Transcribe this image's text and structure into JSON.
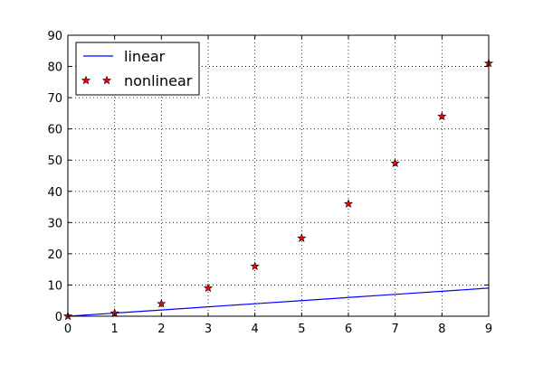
{
  "chart_data": {
    "type": "line",
    "title": "",
    "xlabel": "",
    "ylabel": "",
    "xlim": [
      0,
      9
    ],
    "ylim": [
      0,
      90
    ],
    "x_ticks": [
      0,
      1,
      2,
      3,
      4,
      5,
      6,
      7,
      8,
      9
    ],
    "y_ticks": [
      0,
      10,
      20,
      30,
      40,
      50,
      60,
      70,
      80,
      90
    ],
    "grid": true,
    "legend_position": "top-left",
    "series": [
      {
        "name": "linear",
        "style": "line",
        "color": "#0000ff",
        "x": [
          0,
          1,
          2,
          3,
          4,
          5,
          6,
          7,
          8,
          9
        ],
        "y": [
          0,
          1,
          2,
          3,
          4,
          5,
          6,
          7,
          8,
          9
        ]
      },
      {
        "name": "nonlinear",
        "style": "star-markers",
        "color": "#ff0000",
        "edge_color": "#000000",
        "x": [
          0,
          1,
          2,
          3,
          4,
          5,
          6,
          7,
          8,
          9
        ],
        "y": [
          0,
          1,
          4,
          9,
          16,
          25,
          36,
          49,
          64,
          81
        ]
      }
    ]
  }
}
